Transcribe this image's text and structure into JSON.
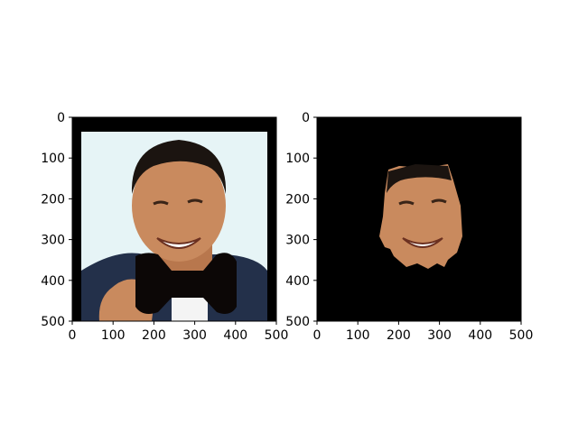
{
  "chart_data": [
    {
      "type": "image",
      "description_name": "left-image-panel",
      "xlim": [
        0,
        500
      ],
      "ylim": [
        500,
        0
      ],
      "xticks": [
        0,
        100,
        200,
        300,
        400,
        500
      ],
      "yticks": [
        0,
        100,
        200,
        300,
        400,
        500
      ],
      "xticklabels": [
        "0",
        "100",
        "200",
        "300",
        "400",
        "500"
      ],
      "yticklabels": [
        "0",
        "100",
        "200",
        "300",
        "400",
        "500"
      ],
      "colors": {
        "border": "#000000",
        "sky": "#e6f4f6",
        "skin": "#c98a5e",
        "hair": "#1b1410",
        "jacket": "#23304a",
        "bowtie": "#0c0706"
      }
    },
    {
      "type": "image",
      "description_name": "right-image-panel",
      "xlim": [
        0,
        500
      ],
      "ylim": [
        500,
        0
      ],
      "xticks": [
        0,
        100,
        200,
        300,
        400,
        500
      ],
      "yticks": [
        0,
        100,
        200,
        300,
        400,
        500
      ],
      "xticklabels": [
        "0",
        "100",
        "200",
        "300",
        "400",
        "500"
      ],
      "yticklabels": [
        "0",
        "100",
        "200",
        "300",
        "400",
        "500"
      ],
      "colors": {
        "background": "#000000",
        "skin": "#c98a5e"
      }
    }
  ]
}
